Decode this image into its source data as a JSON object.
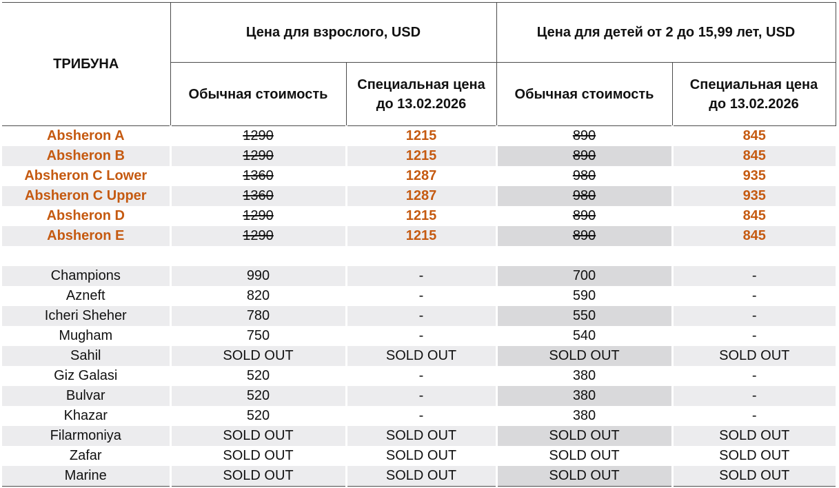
{
  "header": {
    "tribune": "ТРИБУНА",
    "adult_group": "Цена для взрослого, USD",
    "child_group": "Цена для детей от 2 до 15,99 лет, USD",
    "regular": "Обычная стоимость",
    "special_line1": "Специальная цена",
    "special_line2": "до 13.02.2026"
  },
  "featured_rows": [
    {
      "name": "Absheron A",
      "adult_regular": "1290",
      "adult_special": "1215",
      "child_regular": "890",
      "child_special": "845"
    },
    {
      "name": "Absheron B",
      "adult_regular": "1290",
      "adult_special": "1215",
      "child_regular": "890",
      "child_special": "845"
    },
    {
      "name": "Absheron C Lower",
      "adult_regular": "1360",
      "adult_special": "1287",
      "child_regular": "980",
      "child_special": "935"
    },
    {
      "name": "Absheron C Upper",
      "adult_regular": "1360",
      "adult_special": "1287",
      "child_regular": "980",
      "child_special": "935"
    },
    {
      "name": "Absheron D",
      "adult_regular": "1290",
      "adult_special": "1215",
      "child_regular": "890",
      "child_special": "845"
    },
    {
      "name": "Absheron E",
      "adult_regular": "1290",
      "adult_special": "1215",
      "child_regular": "890",
      "child_special": "845"
    }
  ],
  "regular_rows": [
    {
      "name": "Champions",
      "adult_regular": "990",
      "adult_special": "-",
      "child_regular": "700",
      "child_special": "-"
    },
    {
      "name": "Azneft",
      "adult_regular": "820",
      "adult_special": "-",
      "child_regular": "590",
      "child_special": "-"
    },
    {
      "name": "Icheri Sheher",
      "adult_regular": "780",
      "adult_special": "-",
      "child_regular": "550",
      "child_special": "-"
    },
    {
      "name": "Mugham",
      "adult_regular": "750",
      "adult_special": "-",
      "child_regular": "540",
      "child_special": "-"
    },
    {
      "name": "Sahil",
      "adult_regular": "SOLD OUT",
      "adult_special": "SOLD OUT",
      "child_regular": "SOLD OUT",
      "child_special": "SOLD OUT"
    },
    {
      "name": "Giz Galasi",
      "adult_regular": "520",
      "adult_special": "-",
      "child_regular": "380",
      "child_special": "-"
    },
    {
      "name": "Bulvar",
      "adult_regular": "520",
      "adult_special": "-",
      "child_regular": "380",
      "child_special": "-"
    },
    {
      "name": "Khazar",
      "adult_regular": "520",
      "adult_special": "-",
      "child_regular": "380",
      "child_special": "-"
    },
    {
      "name": "Filarmoniya",
      "adult_regular": "SOLD OUT",
      "adult_special": "SOLD OUT",
      "child_regular": "SOLD OUT",
      "child_special": "SOLD OUT"
    },
    {
      "name": "Zafar",
      "adult_regular": "SOLD OUT",
      "adult_special": "SOLD OUT",
      "child_regular": "SOLD OUT",
      "child_special": "SOLD OUT"
    },
    {
      "name": "Marine",
      "adult_regular": "SOLD OUT",
      "adult_special": "SOLD OUT",
      "child_regular": "SOLD OUT",
      "child_special": "SOLD OUT"
    }
  ]
}
